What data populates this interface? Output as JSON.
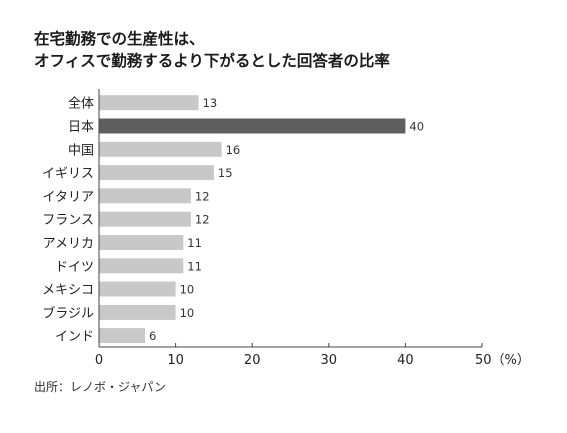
{
  "chart_data": {
    "type": "bar",
    "orientation": "horizontal",
    "title_lines": [
      "在宅勤務での生産性は、",
      "オフィスで勤務するより下がるとした回答者の比率"
    ],
    "categories": [
      "全体",
      "日本",
      "中国",
      "イギリス",
      "イタリア",
      "フランス",
      "アメリカ",
      "ドイツ",
      "メキシコ",
      "ブラジル",
      "インド"
    ],
    "values": [
      13,
      40,
      16,
      15,
      12,
      12,
      11,
      11,
      10,
      10,
      6
    ],
    "value_labels": [
      "13",
      "40",
      "16",
      "15",
      "12",
      "12",
      "11",
      "11",
      "10",
      "10",
      "6"
    ],
    "highlight_index": 1,
    "xlim": [
      0,
      50
    ],
    "xticks": [
      0,
      10,
      20,
      30,
      40,
      50
    ],
    "xtick_labels": [
      "0",
      "10",
      "20",
      "30",
      "40",
      "50（%）"
    ],
    "grid": false,
    "source": "出所：レノボ・ジャパン",
    "colors": {
      "bar": "#c8c8c8",
      "highlight": "#5f5f5f",
      "axis": "#444444",
      "text": "#222222"
    }
  }
}
